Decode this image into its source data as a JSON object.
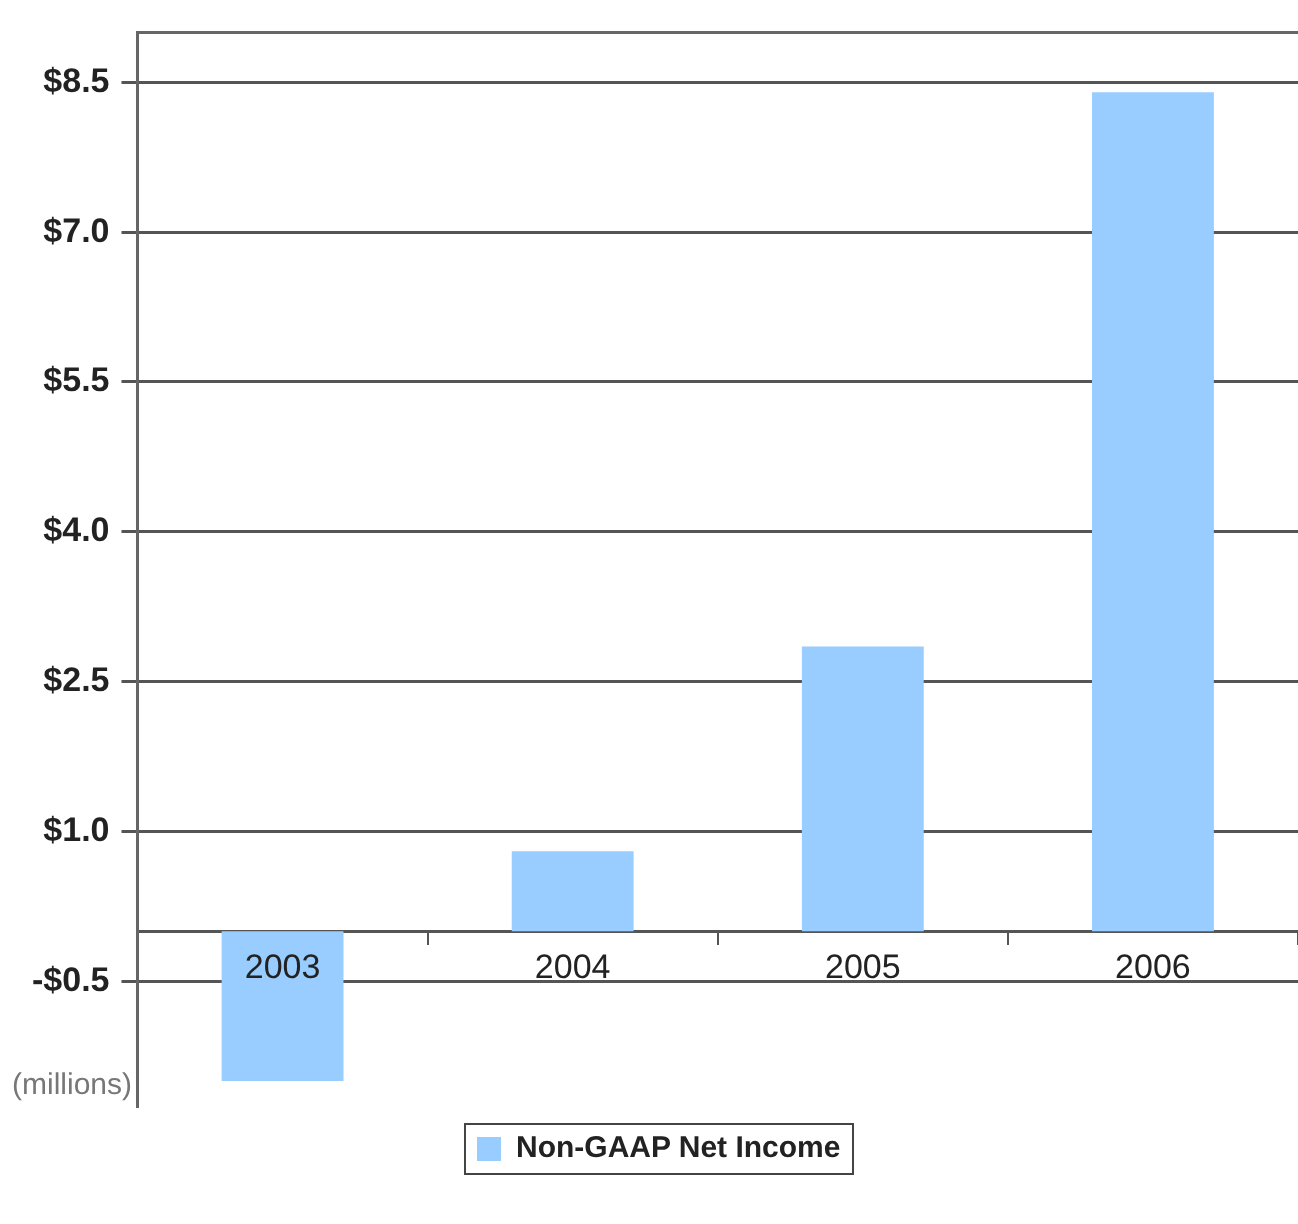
{
  "chart_data": {
    "type": "bar",
    "categories": [
      "2003",
      "2004",
      "2005",
      "2006"
    ],
    "series": [
      {
        "name": "Non-GAAP Net Income",
        "color": "#99ccff",
        "values": [
          -1.5,
          0.8,
          2.85,
          8.4
        ]
      }
    ],
    "ylim": [
      -1.75,
      9.0
    ],
    "yticks": [
      {
        "value": -0.5,
        "label": "-$0.5"
      },
      {
        "value": 1.0,
        "label": "$1.0"
      },
      {
        "value": 2.5,
        "label": "$2.5"
      },
      {
        "value": 4.0,
        "label": "$4.0"
      },
      {
        "value": 5.5,
        "label": "$5.5"
      },
      {
        "value": 7.0,
        "label": "$7.0"
      },
      {
        "value": 8.5,
        "label": "$8.5"
      }
    ],
    "grid": "y",
    "legend": "bottom",
    "annotations": [
      "(millions)"
    ]
  }
}
